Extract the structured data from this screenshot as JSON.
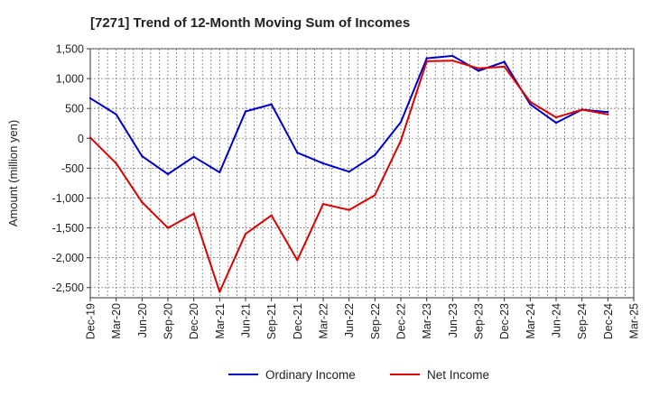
{
  "chart_data": {
    "type": "line",
    "title": "[7271]  Trend of 12-Month Moving Sum of Incomes",
    "xlabel": "",
    "ylabel": "Amount (million yen)",
    "ylim": [
      -2670,
      1500
    ],
    "yticks": [
      1500,
      1000,
      500,
      0,
      -500,
      -1000,
      -1500,
      -2000,
      -2500
    ],
    "ytick_labels": [
      "1,500",
      "1,000",
      "500",
      "0",
      "-500",
      "-1,000",
      "-1,500",
      "-2,000",
      "-2,500"
    ],
    "categories": [
      "Dec-19",
      "Mar-20",
      "Jun-20",
      "Sep-20",
      "Dec-20",
      "Mar-21",
      "Jun-21",
      "Sep-21",
      "Dec-21",
      "Mar-22",
      "Jun-22",
      "Sep-22",
      "Dec-22",
      "Mar-23",
      "Jun-23",
      "Sep-23",
      "Dec-23",
      "Mar-24",
      "Jun-24",
      "Sep-24",
      "Dec-24",
      "Mar-25"
    ],
    "grid": true,
    "legend_position": "bottom",
    "series": [
      {
        "name": "Ordinary Income",
        "color": "#0000cc",
        "values": [
          670,
          400,
          -300,
          -600,
          -310,
          -570,
          450,
          570,
          -240,
          -420,
          -560,
          -280,
          270,
          1340,
          1380,
          1130,
          1280,
          570,
          260,
          480,
          440,
          null
        ]
      },
      {
        "name": "Net Income",
        "color": "#dd0000",
        "values": [
          10,
          -420,
          -1070,
          -1500,
          -1260,
          -2570,
          -1600,
          -1290,
          -2040,
          -1100,
          -1200,
          -950,
          -40,
          1290,
          1300,
          1170,
          1200,
          610,
          350,
          480,
          400,
          null
        ]
      }
    ]
  }
}
